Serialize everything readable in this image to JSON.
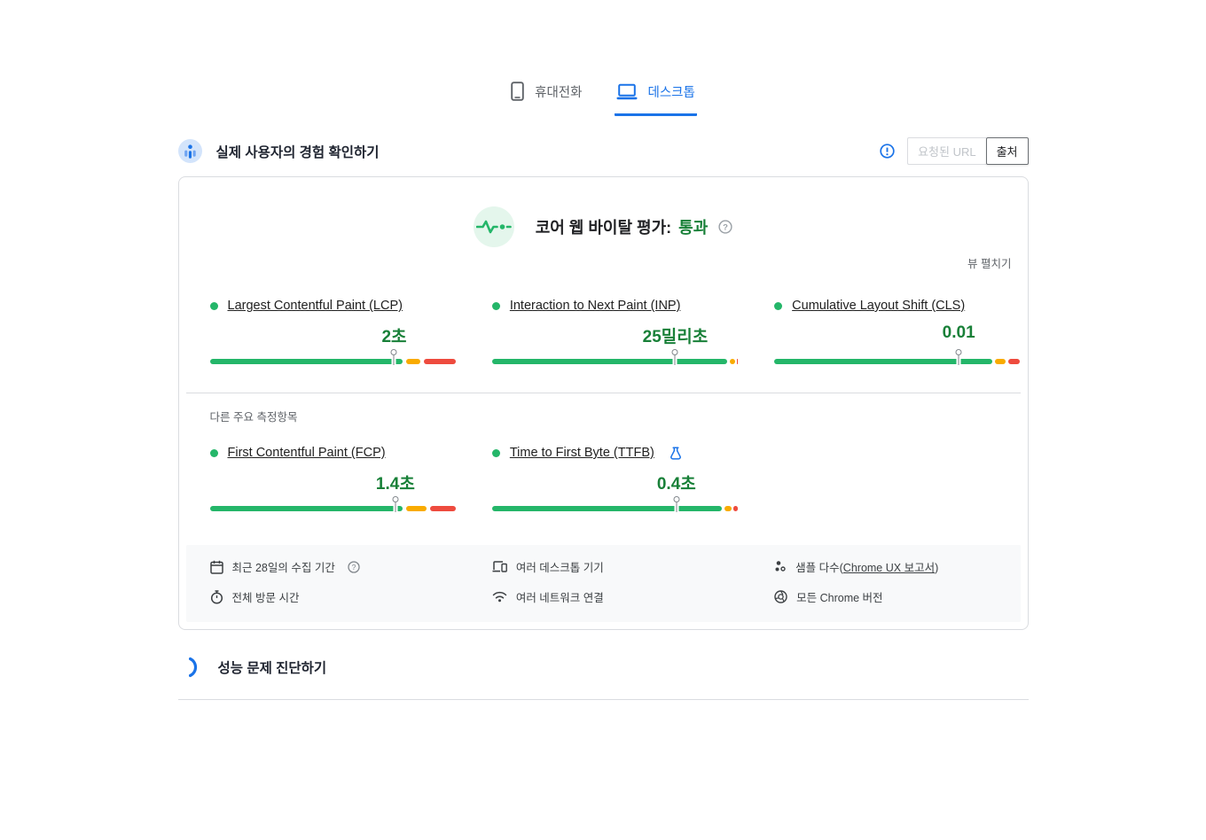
{
  "colors": {
    "accent_blue": "#1a73e8",
    "bar_green": "#24b669",
    "bar_orange": "#f9ab00",
    "bar_red": "#ee4b3e",
    "value_green": "#188038"
  },
  "tabs": {
    "mobile_label": "휴대전화",
    "desktop_label": "데스크톱"
  },
  "header": {
    "title": "실제 사용자의 경험 확인하기",
    "requested_url_label": "요청된 URL",
    "origin_label": "출처"
  },
  "cwv": {
    "label": "코어 웹 바이탈 평가:",
    "status": "통과",
    "expand_label": "뷰 펼치기"
  },
  "metrics": {
    "other_label": "다른 주요 측정항목",
    "primary": [
      {
        "name": "Largest Contentful Paint (LCP)",
        "value": "2초",
        "marker": 75,
        "segments": [
          [
            0,
            78.5
          ],
          [
            80,
            85.5
          ],
          [
            87,
            100
          ]
        ]
      },
      {
        "name": "Interaction to Next Paint (INP)",
        "value": "25밀리초",
        "marker": 74.5,
        "segments": [
          [
            0,
            95.7
          ],
          [
            96.8,
            98.9
          ],
          [
            99.6,
            100
          ]
        ]
      },
      {
        "name": "Cumulative Layout Shift (CLS)",
        "value": "0.01",
        "marker": 75,
        "segments": [
          [
            0,
            88.8
          ],
          [
            89.9,
            93.9
          ],
          [
            95.1,
            100
          ]
        ]
      }
    ],
    "secondary": [
      {
        "name": "First Contentful Paint (FCP)",
        "value": "1.4초",
        "marker": 75.5,
        "segments": [
          [
            0,
            78.5
          ],
          [
            80,
            88
          ],
          [
            89.5,
            100
          ]
        ]
      },
      {
        "name": "Time to First Byte (TTFB)",
        "value": "0.4초",
        "marker": 75,
        "experimental": true,
        "segments": [
          [
            0,
            93.5
          ],
          [
            94.7,
            97.3
          ],
          [
            98.2,
            100
          ]
        ]
      }
    ]
  },
  "footer": {
    "collection_period": "최근 28일의 수집 기간",
    "visit_durations": "전체 방문 시간",
    "devices": "여러 데스크톱 기기",
    "network": "여러 네트워크 연결",
    "samples_before": "샘플 다수(",
    "samples_link": "Chrome UX 보고서",
    "samples_after": ")",
    "chrome_versions": "모든 Chrome 버전"
  },
  "diagnose": {
    "title": "성능 문제 진단하기"
  }
}
